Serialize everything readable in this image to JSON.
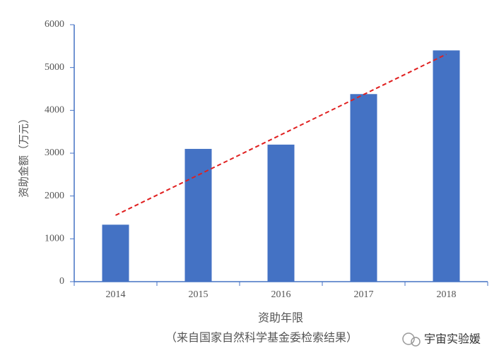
{
  "chart_data": {
    "type": "bar",
    "categories": [
      "2014",
      "2015",
      "2016",
      "2017",
      "2018"
    ],
    "series": [
      {
        "name": "资助金额",
        "type": "bar",
        "color": "#4472c4",
        "values": [
          1330,
          3100,
          3200,
          4380,
          5400
        ]
      },
      {
        "type": "line",
        "color": "#e02020",
        "dashed": true,
        "values": [
          1550,
          2490,
          3430,
          4370,
          5310
        ]
      }
    ],
    "ylim": [
      0,
      6000
    ],
    "yticks": [
      0,
      1000,
      2000,
      3000,
      4000,
      5000,
      6000
    ],
    "y_label": "资助金额（万元）",
    "x_label": "资助年限",
    "x_sublabel": "（来自国家自然科学基金委检索结果）",
    "watermark": "宇宙实验媛"
  }
}
